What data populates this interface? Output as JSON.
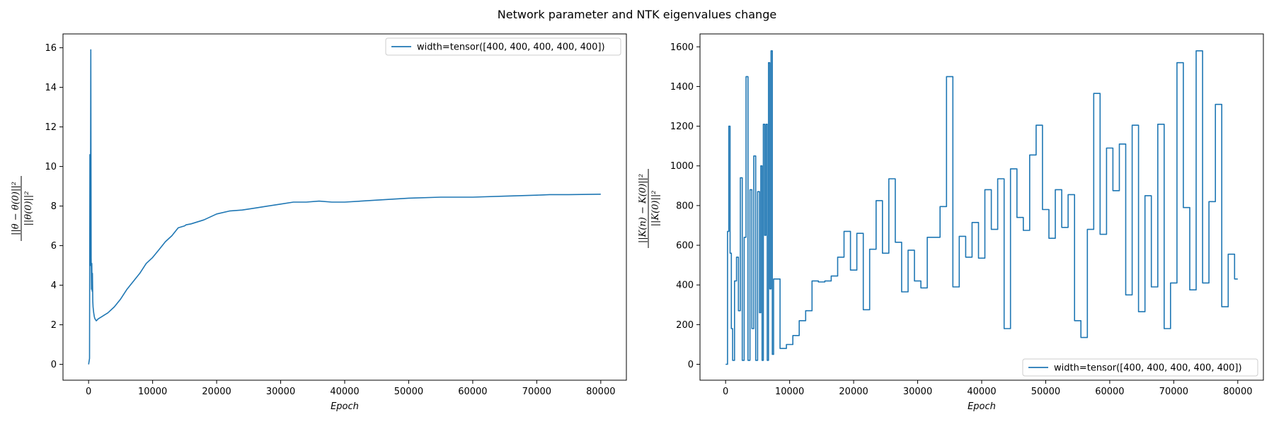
{
  "figure": {
    "suptitle": "Network parameter and NTK eigenvalues change"
  },
  "colors": {
    "line": "#1f77b4",
    "axes": "#000000"
  },
  "chart_data": [
    {
      "type": "line",
      "xlabel": "Epoch",
      "ylabel_numerator": "||θ − θ(0)||²",
      "ylabel_denominator": "||θ(0)||²",
      "xlim": [
        -4000,
        84000
      ],
      "ylim": [
        -0.8,
        16.7
      ],
      "xticks": [
        0,
        10000,
        20000,
        30000,
        40000,
        50000,
        60000,
        70000,
        80000
      ],
      "yticks": [
        0,
        2,
        4,
        6,
        8,
        10,
        12,
        14,
        16
      ],
      "legend": {
        "label": "width=tensor([400, 400, 400, 400, 400])",
        "placement": "upper right"
      },
      "series": [
        {
          "name": "width=tensor([400, 400, 400, 400, 400])",
          "x": [
            0,
            150,
            200,
            280,
            350,
            400,
            450,
            500,
            550,
            600,
            650,
            700,
            800,
            900,
            1000,
            1200,
            1500,
            2000,
            2500,
            3000,
            4000,
            5000,
            6000,
            7000,
            8000,
            9000,
            10000,
            11000,
            12000,
            13000,
            14000,
            15000,
            15200,
            16000,
            18000,
            20000,
            22000,
            24000,
            26000,
            28000,
            30000,
            32000,
            34000,
            36000,
            38000,
            40000,
            45000,
            50000,
            55000,
            60000,
            65000,
            70000,
            72000,
            75000,
            80000
          ],
          "y": [
            0,
            0.3,
            10.6,
            5.0,
            15.9,
            5.4,
            3.8,
            5.1,
            3.7,
            4.6,
            3.2,
            2.9,
            2.6,
            2.4,
            2.3,
            2.2,
            2.3,
            2.4,
            2.5,
            2.6,
            2.9,
            3.3,
            3.8,
            4.2,
            4.6,
            5.1,
            5.4,
            5.8,
            6.2,
            6.5,
            6.9,
            7.0,
            7.05,
            7.1,
            7.3,
            7.6,
            7.75,
            7.8,
            7.9,
            8.0,
            8.1,
            8.2,
            8.2,
            8.25,
            8.2,
            8.2,
            8.3,
            8.4,
            8.45,
            8.45,
            8.5,
            8.55,
            8.58,
            8.58,
            8.6
          ]
        }
      ]
    },
    {
      "type": "line",
      "step": true,
      "xlabel": "Epoch",
      "ylabel_numerator": "||K(n) − K(0)||²",
      "ylabel_denominator": "||K(0)||²",
      "xlim": [
        -4000,
        84000
      ],
      "ylim": [
        -80,
        1665
      ],
      "xticks": [
        0,
        10000,
        20000,
        30000,
        40000,
        50000,
        60000,
        70000,
        80000
      ],
      "yticks": [
        0,
        200,
        400,
        600,
        800,
        1000,
        1200,
        1400,
        1600
      ],
      "legend": {
        "label": "width=tensor([400, 400, 400, 400, 400])",
        "placement": "lower right"
      },
      "series": [
        {
          "name": "width=tensor([400, 400, 400, 400, 400])",
          "x": [
            0,
            300,
            500,
            700,
            900,
            1100,
            1400,
            1700,
            2000,
            2300,
            2600,
            2900,
            3200,
            3500,
            3800,
            4100,
            4400,
            4700,
            5000,
            5300,
            5500,
            5700,
            5900,
            6100,
            6300,
            6500,
            6700,
            6900,
            7100,
            7300,
            7500,
            7700,
            8500,
            9500,
            10500,
            11500,
            12500,
            13500,
            14500,
            15500,
            16500,
            17500,
            18500,
            19500,
            20500,
            21500,
            22500,
            23500,
            24500,
            25500,
            26500,
            27500,
            28500,
            29500,
            30500,
            31500,
            32500,
            33500,
            34500,
            35500,
            36500,
            37500,
            38500,
            39500,
            40500,
            41500,
            42500,
            43500,
            44500,
            45500,
            46500,
            47500,
            48500,
            49500,
            50500,
            51500,
            52500,
            53500,
            54500,
            55500,
            56500,
            57500,
            58500,
            59500,
            60500,
            61500,
            62500,
            63500,
            64500,
            65500,
            66500,
            67500,
            68500,
            69500,
            70500,
            71500,
            72500,
            73500,
            74500,
            75500,
            76500,
            77500,
            78500,
            79500,
            80000
          ],
          "y": [
            0,
            670,
            1200,
            560,
            180,
            20,
            420,
            540,
            270,
            940,
            20,
            640,
            1450,
            20,
            880,
            180,
            1050,
            20,
            870,
            260,
            1000,
            20,
            1210,
            650,
            1210,
            20,
            1520,
            380,
            1580,
            50,
            430,
            430,
            80,
            100,
            145,
            220,
            270,
            420,
            415,
            420,
            445,
            540,
            670,
            475,
            660,
            275,
            580,
            825,
            560,
            935,
            615,
            365,
            575,
            420,
            385,
            640,
            640,
            795,
            1450,
            390,
            645,
            540,
            715,
            535,
            880,
            680,
            935,
            180,
            985,
            740,
            675,
            1055,
            1205,
            780,
            635,
            880,
            690,
            855,
            220,
            135,
            680,
            1365,
            655,
            1090,
            875,
            1110,
            350,
            1205,
            265,
            850,
            390,
            1210,
            180,
            410,
            1520,
            790,
            375,
            1580,
            410,
            820,
            1310,
            290,
            555,
            430,
            430
          ]
        }
      ]
    }
  ]
}
